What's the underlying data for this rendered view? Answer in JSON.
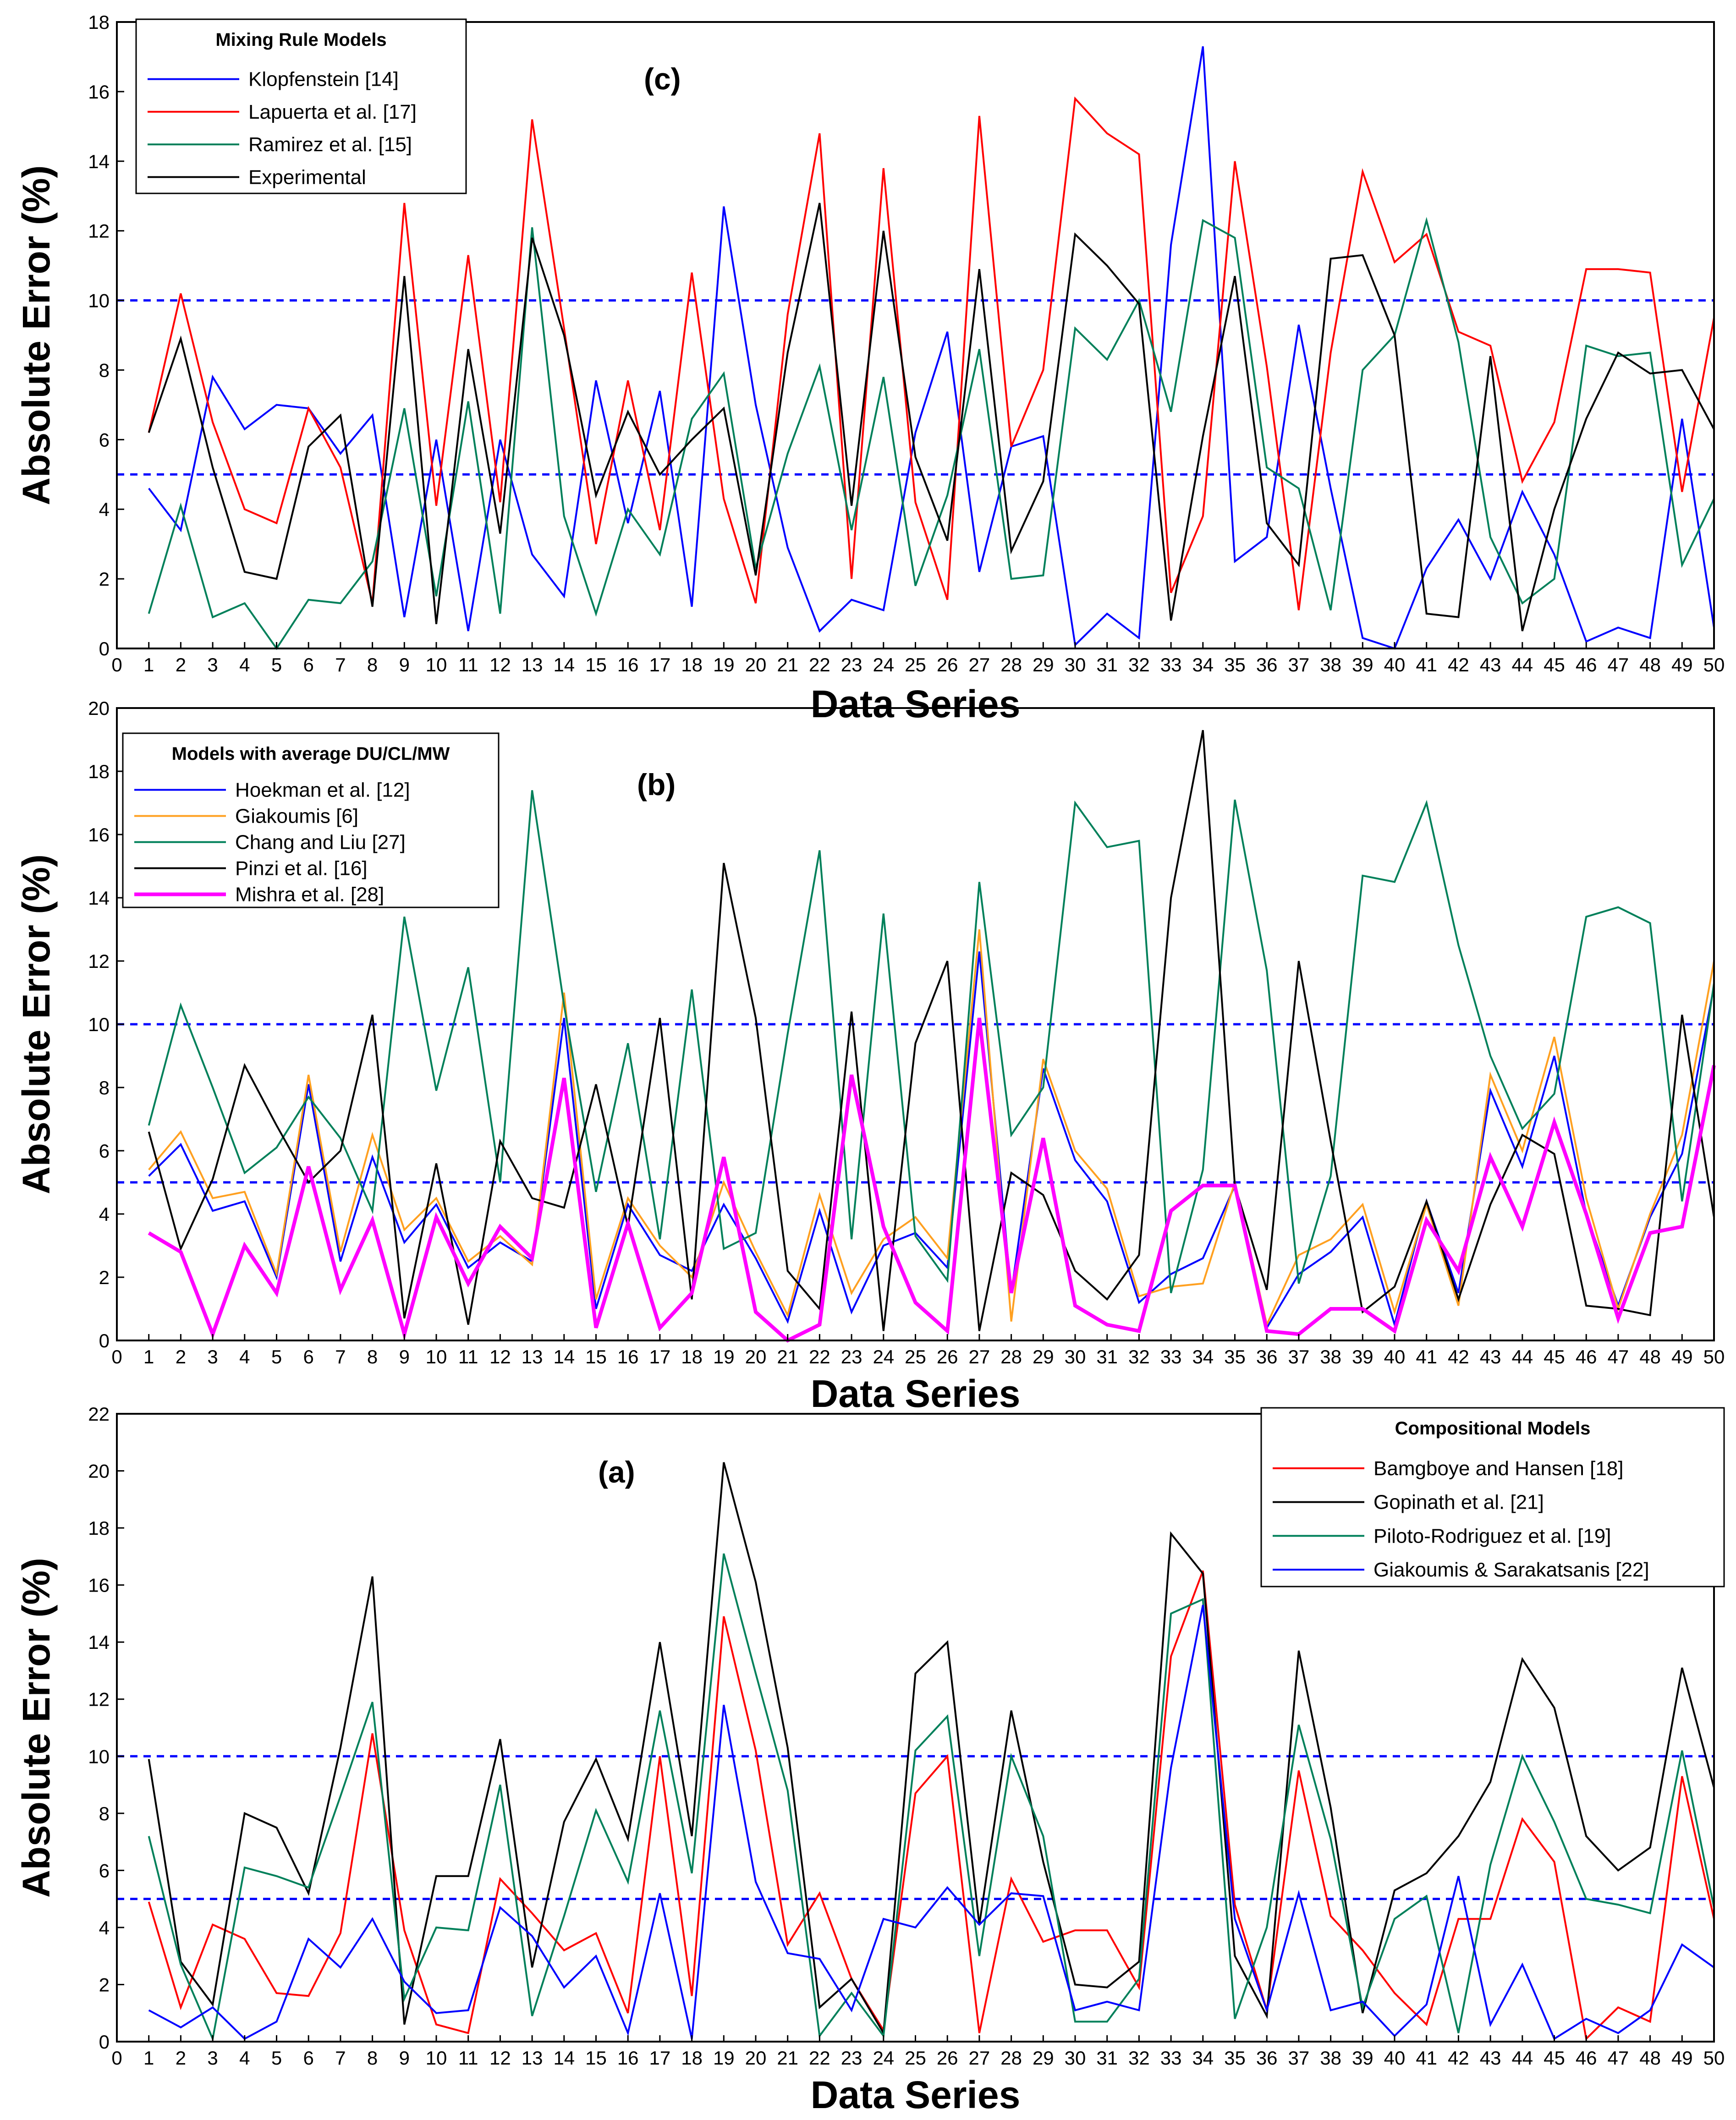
{
  "chart_data": [
    {
      "type": "line",
      "panel": "(c)",
      "ylabel": "Absolute Error (%)",
      "xlabel": "Data Series",
      "xlim": [
        0,
        50
      ],
      "ylim": [
        0,
        18
      ],
      "yticks": [
        0,
        2,
        4,
        6,
        8,
        10,
        12,
        14,
        16,
        18
      ],
      "reference_lines": [
        5,
        10
      ],
      "legend": {
        "title": "Mixing Rule Models",
        "position": "top-left"
      },
      "x": [
        1,
        2,
        3,
        4,
        5,
        6,
        7,
        8,
        9,
        10,
        11,
        12,
        13,
        14,
        15,
        16,
        17,
        18,
        19,
        20,
        21,
        22,
        23,
        24,
        25,
        26,
        27,
        28,
        29,
        30,
        31,
        32,
        33,
        34,
        35,
        36,
        37,
        38,
        39,
        40,
        41,
        42,
        43,
        44,
        45,
        46,
        47,
        48,
        49,
        50
      ],
      "series": [
        {
          "name": "Klopfenstein [14]",
          "color": "#0000ff",
          "values": [
            4.6,
            3.4,
            7.8,
            6.3,
            7.0,
            6.9,
            5.6,
            6.7,
            0.9,
            6.0,
            0.5,
            6.0,
            2.7,
            1.5,
            7.7,
            3.6,
            7.4,
            1.2,
            12.7,
            7.0,
            2.9,
            0.5,
            1.4,
            1.1,
            6.2,
            9.1,
            2.2,
            5.8,
            6.1,
            0.1,
            1.0,
            0.3,
            11.6,
            17.3,
            2.5,
            3.2,
            9.3,
            4.6,
            0.3,
            0.0,
            2.3,
            3.7,
            2.0,
            4.5,
            2.7,
            0.2,
            0.6,
            0.3,
            6.6,
            0.6
          ]
        },
        {
          "name": "Lapuerta et al. [17]",
          "color": "#ff0000",
          "values": [
            6.2,
            10.2,
            6.5,
            4.0,
            3.6,
            6.9,
            5.2,
            1.3,
            12.8,
            4.1,
            11.3,
            4.2,
            15.2,
            9.2,
            3.0,
            7.7,
            3.4,
            10.8,
            4.3,
            1.3,
            9.6,
            14.8,
            2.0,
            13.8,
            4.2,
            1.4,
            15.3,
            5.8,
            8.0,
            15.8,
            14.8,
            14.2,
            1.6,
            3.8,
            14.0,
            8.1,
            1.1,
            8.5,
            13.7,
            11.1,
            11.9,
            9.1,
            8.7,
            4.8,
            6.5,
            10.9,
            10.9,
            10.8,
            4.5,
            9.5
          ]
        },
        {
          "name": "Ramirez et al. [15]",
          "color": "#00805a",
          "values": [
            1.0,
            4.1,
            0.9,
            1.3,
            0.0,
            1.4,
            1.3,
            2.5,
            6.9,
            1.5,
            7.1,
            1.0,
            12.1,
            3.8,
            1.0,
            4.0,
            2.7,
            6.6,
            7.9,
            2.3,
            5.6,
            8.1,
            3.4,
            7.8,
            1.8,
            4.4,
            8.6,
            2.0,
            2.1,
            9.2,
            8.3,
            10.0,
            6.8,
            12.3,
            11.8,
            5.2,
            4.6,
            1.1,
            8.0,
            9.0,
            12.3,
            8.8,
            3.2,
            1.3,
            2.0,
            8.7,
            8.4,
            8.5,
            2.4,
            4.3
          ]
        },
        {
          "name": "Experimental",
          "color": "#000000",
          "values": [
            6.2,
            8.9,
            5.2,
            2.2,
            2.0,
            5.8,
            6.7,
            1.2,
            10.7,
            0.7,
            8.6,
            3.3,
            11.8,
            9.0,
            4.4,
            6.8,
            5.0,
            6.0,
            6.9,
            2.1,
            8.5,
            12.8,
            4.1,
            12.0,
            5.5,
            3.1,
            10.9,
            2.8,
            4.8,
            11.9,
            11.0,
            9.9,
            0.8,
            6.1,
            10.7,
            3.6,
            2.4,
            11.2,
            11.3,
            9.0,
            1.0,
            0.9,
            8.4,
            0.5,
            4.0,
            6.6,
            8.5,
            7.9,
            8.0,
            6.3
          ]
        }
      ]
    },
    {
      "type": "line",
      "panel": "(b)",
      "ylabel": "Absolute Error (%)",
      "xlabel": "Data Series",
      "xlim": [
        0,
        50
      ],
      "ylim": [
        0,
        20
      ],
      "yticks": [
        0,
        2,
        4,
        6,
        8,
        10,
        12,
        14,
        16,
        18,
        20
      ],
      "reference_lines": [
        5,
        10
      ],
      "legend": {
        "title": "Models with average DU/CL/MW",
        "position": "top-left"
      },
      "x": [
        1,
        2,
        3,
        4,
        5,
        6,
        7,
        8,
        9,
        10,
        11,
        12,
        13,
        14,
        15,
        16,
        17,
        18,
        19,
        20,
        21,
        22,
        23,
        24,
        25,
        26,
        27,
        28,
        29,
        30,
        31,
        32,
        33,
        34,
        35,
        36,
        37,
        38,
        39,
        40,
        41,
        42,
        43,
        44,
        45,
        46,
        47,
        48,
        49,
        50
      ],
      "series": [
        {
          "name": "Hoekman et al. [12]",
          "color": "#0000ff",
          "values": [
            5.2,
            6.2,
            4.1,
            4.4,
            2.0,
            8.1,
            2.5,
            5.8,
            3.1,
            4.3,
            2.3,
            3.1,
            2.5,
            10.2,
            1.0,
            4.3,
            2.7,
            2.2,
            4.3,
            2.6,
            0.6,
            4.1,
            0.9,
            3.0,
            3.4,
            2.3,
            12.3,
            1.5,
            8.6,
            5.7,
            4.4,
            1.2,
            2.1,
            2.6,
            4.9,
            0.4,
            2.1,
            2.8,
            3.9,
            0.5,
            4.4,
            1.5,
            7.9,
            5.5,
            9.0,
            4.0,
            1.1,
            3.9,
            5.9,
            11.2
          ]
        },
        {
          "name": "Giakoumis [6]",
          "color": "#ffa020",
          "values": [
            5.4,
            6.6,
            4.5,
            4.7,
            2.1,
            8.4,
            2.8,
            6.5,
            3.5,
            4.5,
            2.5,
            3.3,
            2.4,
            11.0,
            1.3,
            4.5,
            3.0,
            2.0,
            5.0,
            2.8,
            0.8,
            4.6,
            1.5,
            3.2,
            3.9,
            2.6,
            13.0,
            0.6,
            8.9,
            6.0,
            4.8,
            1.4,
            1.7,
            1.8,
            5.0,
            0.5,
            2.7,
            3.2,
            4.3,
            0.9,
            4.3,
            1.1,
            8.4,
            6.0,
            9.6,
            4.5,
            1.0,
            4.0,
            6.5,
            12.0
          ]
        },
        {
          "name": "Chang and Liu [27]",
          "color": "#00805a",
          "values": [
            6.8,
            10.6,
            8.0,
            5.3,
            6.1,
            7.7,
            6.4,
            4.1,
            13.4,
            7.9,
            11.8,
            5.0,
            17.4,
            10.6,
            4.7,
            9.4,
            3.2,
            11.1,
            2.9,
            3.4,
            9.7,
            15.5,
            3.2,
            13.5,
            3.3,
            1.9,
            14.5,
            6.5,
            8.0,
            17.0,
            15.6,
            15.8,
            1.5,
            5.4,
            17.1,
            11.7,
            1.8,
            5.2,
            14.7,
            14.5,
            17.0,
            12.5,
            9.0,
            6.7,
            7.8,
            13.4,
            13.7,
            13.2,
            4.4,
            11.3
          ]
        },
        {
          "name": "Pinzi et al. [16]",
          "color": "#000000",
          "values": [
            6.6,
            2.9,
            5.1,
            8.7,
            6.8,
            5.0,
            6.0,
            10.3,
            0.7,
            5.6,
            0.5,
            6.3,
            4.5,
            4.2,
            8.1,
            3.6,
            10.2,
            1.3,
            15.1,
            10.2,
            2.2,
            1.0,
            10.4,
            0.3,
            9.4,
            12.0,
            0.3,
            5.3,
            4.6,
            2.2,
            1.3,
            2.7,
            14.0,
            19.3,
            4.9,
            1.6,
            12.0,
            6.3,
            0.9,
            1.7,
            4.4,
            1.3,
            4.3,
            6.5,
            5.9,
            1.1,
            1.0,
            0.8,
            10.3,
            3.9
          ]
        },
        {
          "name": "Mishra et al. [28]",
          "color": "#ff00ff",
          "values": [
            3.4,
            2.8,
            0.2,
            3.0,
            1.5,
            5.5,
            1.6,
            3.8,
            0.2,
            3.9,
            1.8,
            3.6,
            2.6,
            8.3,
            0.4,
            3.7,
            0.4,
            1.5,
            5.8,
            0.9,
            0.0,
            0.5,
            8.4,
            3.6,
            1.2,
            0.3,
            10.2,
            1.5,
            6.4,
            1.1,
            0.5,
            0.3,
            4.1,
            4.9,
            4.9,
            0.3,
            0.2,
            1.0,
            1.0,
            0.3,
            3.8,
            2.2,
            5.8,
            3.6,
            6.9,
            4.0,
            0.7,
            3.4,
            3.6,
            8.7
          ]
        }
      ]
    },
    {
      "type": "line",
      "panel": "(a)",
      "ylabel": "Absolute Error (%)",
      "xlabel": "Data Series",
      "xlim": [
        0,
        50
      ],
      "ylim": [
        0,
        22
      ],
      "yticks": [
        0,
        2,
        4,
        6,
        8,
        10,
        12,
        14,
        16,
        18,
        20,
        22
      ],
      "reference_lines": [
        5,
        10
      ],
      "legend": {
        "title": "Compositional Models",
        "position": "top-right"
      },
      "x": [
        1,
        2,
        3,
        4,
        5,
        6,
        7,
        8,
        9,
        10,
        11,
        12,
        13,
        14,
        15,
        16,
        17,
        18,
        19,
        20,
        21,
        22,
        23,
        24,
        25,
        26,
        27,
        28,
        29,
        30,
        31,
        32,
        33,
        34,
        35,
        36,
        37,
        38,
        39,
        40,
        41,
        42,
        43,
        44,
        45,
        46,
        47,
        48,
        49,
        50
      ],
      "series": [
        {
          "name": "Bamgboye and Hansen [18]",
          "color": "#ff0000",
          "values": [
            4.9,
            1.2,
            4.1,
            3.6,
            1.7,
            1.6,
            3.8,
            10.8,
            3.9,
            0.6,
            0.3,
            5.7,
            4.5,
            3.2,
            3.8,
            1.0,
            10.0,
            1.6,
            14.9,
            10.2,
            3.4,
            5.2,
            2.2,
            0.4,
            8.7,
            10.0,
            0.3,
            5.7,
            3.5,
            3.9,
            3.9,
            1.9,
            13.5,
            16.5,
            4.8,
            1.1,
            9.5,
            4.4,
            3.2,
            1.7,
            0.6,
            4.3,
            4.3,
            7.8,
            6.3,
            0.1,
            1.2,
            0.7,
            9.3,
            4.3
          ]
        },
        {
          "name": "Gopinath et al. [21]",
          "color": "#000000",
          "values": [
            9.9,
            2.8,
            1.3,
            8.0,
            7.5,
            5.2,
            10.3,
            16.3,
            0.6,
            5.8,
            5.8,
            10.6,
            2.6,
            7.7,
            9.9,
            7.1,
            14.0,
            7.2,
            20.3,
            16.1,
            10.3,
            1.2,
            2.2,
            0.3,
            12.9,
            14.0,
            4.1,
            11.6,
            6.3,
            2.0,
            1.9,
            2.8,
            17.8,
            16.4,
            3.0,
            0.9,
            13.7,
            8.2,
            1.0,
            5.3,
            5.9,
            7.2,
            9.1,
            13.4,
            11.7,
            7.2,
            6.0,
            6.8,
            13.1,
            8.9
          ]
        },
        {
          "name": "Piloto-Rodriguez et al. [19]",
          "color": "#00805a",
          "values": [
            7.2,
            2.7,
            0.1,
            6.1,
            5.8,
            5.4,
            8.6,
            11.9,
            1.5,
            4.0,
            3.9,
            9.0,
            0.9,
            4.4,
            8.1,
            5.6,
            11.6,
            5.9,
            17.1,
            12.9,
            8.8,
            0.2,
            1.7,
            0.2,
            10.2,
            11.4,
            3.0,
            10.0,
            7.2,
            0.7,
            0.7,
            2.2,
            15.0,
            15.5,
            0.8,
            4.0,
            11.1,
            7.1,
            1.2,
            4.3,
            5.1,
            0.3,
            6.2,
            10.0,
            7.7,
            5.0,
            4.8,
            4.5,
            10.2,
            4.7
          ]
        },
        {
          "name": "Giakoumis & Sarakatsanis [22]",
          "color": "#0000ff",
          "values": [
            1.1,
            0.5,
            1.2,
            0.1,
            0.7,
            3.6,
            2.6,
            4.3,
            2.1,
            1.0,
            1.1,
            4.7,
            3.7,
            1.9,
            3.0,
            0.3,
            5.2,
            0.1,
            11.8,
            5.6,
            3.1,
            2.9,
            1.1,
            4.3,
            4.0,
            5.4,
            4.1,
            5.2,
            5.1,
            1.1,
            1.4,
            1.1,
            9.6,
            15.3,
            4.3,
            1.1,
            5.2,
            1.1,
            1.4,
            0.2,
            1.3,
            5.8,
            0.6,
            2.7,
            0.1,
            0.8,
            0.3,
            1.1,
            3.4,
            2.6
          ]
        }
      ]
    }
  ]
}
